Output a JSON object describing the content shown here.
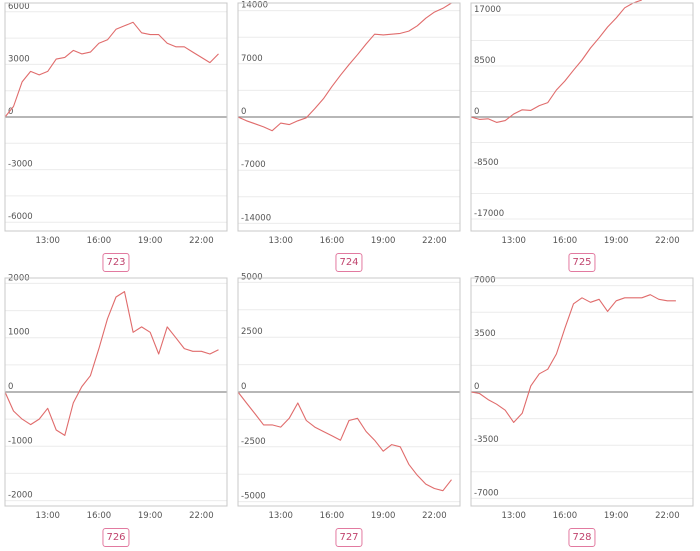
{
  "chart_data": [
    {
      "type": "line",
      "panel_label": "723",
      "ylim": [
        -6500,
        6500
      ],
      "yticks": [
        "6000",
        "3000",
        "0",
        "-3000",
        "-6000"
      ],
      "ytick_values": [
        6000,
        3000,
        0,
        -3000,
        -6000
      ],
      "xticks": [
        "13:00",
        "16:00",
        "19:00",
        "22:00"
      ],
      "xtick_values": [
        13,
        16,
        19,
        22
      ],
      "xlim": [
        10.5,
        23.5
      ],
      "series": [
        {
          "x": [
            10.5,
            11.0,
            11.5,
            12.0,
            12.5,
            13.0,
            13.5,
            14.0,
            14.5,
            15.0,
            15.5,
            16.0,
            16.5,
            17.0,
            17.5,
            18.0,
            18.5,
            19.0,
            19.5,
            20.0,
            20.5,
            21.0,
            21.5,
            22.0,
            22.5,
            23.0
          ],
          "y": [
            0,
            600,
            2000,
            2600,
            2400,
            2600,
            3300,
            3400,
            3800,
            3600,
            3700,
            4200,
            4400,
            5000,
            5200,
            5400,
            4800,
            4700,
            4700,
            4200,
            4000,
            4000,
            3700,
            3400,
            3100,
            3600
          ]
        }
      ]
    },
    {
      "type": "line",
      "panel_label": "724",
      "ylim": [
        -15000,
        15000
      ],
      "yticks": [
        "14000",
        "7000",
        "0",
        "-7000",
        "-14000"
      ],
      "ytick_values": [
        14000,
        7000,
        0,
        -7000,
        -14000
      ],
      "xticks": [
        "13:00",
        "16:00",
        "19:00",
        "22:00"
      ],
      "xtick_values": [
        13,
        16,
        19,
        22
      ],
      "xlim": [
        10.5,
        23.5
      ],
      "series": [
        {
          "x": [
            10.5,
            11.0,
            11.5,
            12.0,
            12.5,
            13.0,
            13.5,
            14.0,
            14.5,
            15.0,
            15.5,
            16.0,
            16.5,
            17.0,
            17.5,
            18.0,
            18.5,
            19.0,
            19.5,
            20.0,
            20.5,
            21.0,
            21.5,
            22.0,
            22.5,
            23.0
          ],
          "y": [
            0,
            -500,
            -900,
            -1300,
            -1800,
            -800,
            -1000,
            -500,
            -100,
            1100,
            2400,
            4000,
            5500,
            6900,
            8200,
            9600,
            10900,
            10800,
            10900,
            11000,
            11300,
            12000,
            13000,
            13800,
            14300,
            15000
          ]
        }
      ]
    },
    {
      "type": "line",
      "panel_label": "725",
      "ylim": [
        -19000,
        19000
      ],
      "yticks": [
        "17000",
        "8500",
        "0",
        "-8500",
        "-17000"
      ],
      "ytick_values": [
        17000,
        8500,
        0,
        -8500,
        -17000
      ],
      "xticks": [
        "13:00",
        "16:00",
        "19:00",
        "22:00"
      ],
      "xtick_values": [
        13,
        16,
        19,
        22
      ],
      "xlim": [
        10.5,
        23.5
      ],
      "series": [
        {
          "x": [
            10.5,
            11.0,
            11.5,
            12.0,
            12.5,
            13.0,
            13.5,
            14.0,
            14.5,
            15.0,
            15.5,
            16.0,
            16.5,
            17.0,
            17.5,
            18.0,
            18.5,
            19.0,
            19.5,
            20.0,
            20.5
          ],
          "y": [
            0,
            -400,
            -300,
            -900,
            -600,
            500,
            1200,
            1100,
            1900,
            2400,
            4500,
            6000,
            7800,
            9500,
            11500,
            13200,
            15000,
            16500,
            18200,
            19000,
            19500
          ]
        }
      ]
    },
    {
      "type": "line",
      "panel_label": "726",
      "ylim": [
        -2100,
        2100
      ],
      "yticks": [
        "2000",
        "1000",
        "0",
        "-1000",
        "-2000"
      ],
      "ytick_values": [
        2000,
        1000,
        0,
        -1000,
        -2000
      ],
      "xticks": [
        "13:00",
        "16:00",
        "19:00",
        "22:00"
      ],
      "xtick_values": [
        13,
        16,
        19,
        22
      ],
      "xlim": [
        10.5,
        23.5
      ],
      "series": [
        {
          "x": [
            10.5,
            11.0,
            11.5,
            12.0,
            12.5,
            13.0,
            13.5,
            14.0,
            14.5,
            15.0,
            15.5,
            16.0,
            16.5,
            17.0,
            17.5,
            18.0,
            18.5,
            19.0,
            19.5,
            20.0,
            20.5,
            21.0,
            21.5,
            22.0,
            22.5,
            23.0
          ],
          "y": [
            0,
            -350,
            -500,
            -600,
            -500,
            -300,
            -700,
            -800,
            -200,
            100,
            300,
            800,
            1350,
            1750,
            1850,
            1100,
            1200,
            1100,
            700,
            1200,
            1000,
            800,
            750,
            750,
            700,
            780
          ]
        }
      ]
    },
    {
      "type": "line",
      "panel_label": "727",
      "ylim": [
        -5200,
        5200
      ],
      "yticks": [
        "5000",
        "2500",
        "0",
        "-2500",
        "-5000"
      ],
      "ytick_values": [
        5000,
        2500,
        0,
        -2500,
        -5000
      ],
      "xticks": [
        "13:00",
        "16:00",
        "19:00",
        "22:00"
      ],
      "xtick_values": [
        13,
        16,
        19,
        22
      ],
      "xlim": [
        10.5,
        23.5
      ],
      "series": [
        {
          "x": [
            10.5,
            11.0,
            11.5,
            12.0,
            12.5,
            13.0,
            13.5,
            14.0,
            14.5,
            15.0,
            15.5,
            16.0,
            16.5,
            17.0,
            17.5,
            18.0,
            18.5,
            19.0,
            19.5,
            20.0,
            20.5,
            21.0,
            21.5,
            22.0,
            22.5,
            23.0
          ],
          "y": [
            0,
            -500,
            -1000,
            -1500,
            -1500,
            -1600,
            -1200,
            -500,
            -1300,
            -1600,
            -1800,
            -2000,
            -2200,
            -1300,
            -1200,
            -1800,
            -2200,
            -2700,
            -2400,
            -2500,
            -3300,
            -3800,
            -4200,
            -4400,
            -4500,
            -4000
          ]
        }
      ]
    },
    {
      "type": "line",
      "panel_label": "728",
      "ylim": [
        -7500,
        7500
      ],
      "yticks": [
        "7000",
        "3500",
        "0",
        "-3500",
        "-7000"
      ],
      "ytick_values": [
        7000,
        3500,
        0,
        -3500,
        -7000
      ],
      "xticks": [
        "13:00",
        "16:00",
        "19:00",
        "22:00"
      ],
      "xtick_values": [
        13,
        16,
        19,
        22
      ],
      "xlim": [
        10.5,
        23.5
      ],
      "series": [
        {
          "x": [
            10.5,
            11.0,
            11.5,
            12.0,
            12.5,
            13.0,
            13.5,
            14.0,
            14.5,
            15.0,
            15.5,
            16.0,
            16.5,
            17.0,
            17.5,
            18.0,
            18.5,
            19.0,
            19.5,
            20.0,
            20.5,
            21.0,
            21.5,
            22.0,
            22.5
          ],
          "y": [
            0,
            -100,
            -500,
            -800,
            -1200,
            -2000,
            -1400,
            400,
            1200,
            1500,
            2500,
            4200,
            5800,
            6200,
            5900,
            6100,
            5300,
            6000,
            6200,
            6200,
            6200,
            6400,
            6100,
            6000,
            6000
          ]
        }
      ]
    }
  ]
}
